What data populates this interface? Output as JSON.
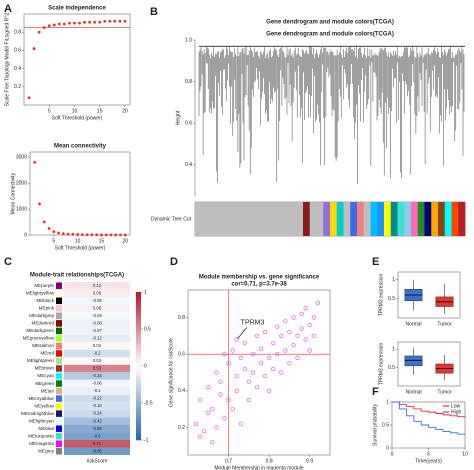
{
  "panels": [
    "A",
    "B",
    "C",
    "D",
    "E",
    "F"
  ],
  "chart_data": [
    {
      "type": "scatter",
      "title": "Scale independence",
      "xlabel": "Soft Threshold (power)",
      "ylabel": "Scale Free Topology Model Fit,signed R^2",
      "color": "#e8322f",
      "x": [
        1,
        2,
        3,
        4,
        5,
        6,
        7,
        8,
        9,
        10,
        11,
        12,
        13,
        14,
        15,
        16,
        17,
        18,
        19,
        20
      ],
      "y": [
        0.08,
        0.62,
        0.8,
        0.85,
        0.87,
        0.88,
        0.89,
        0.89,
        0.9,
        0.9,
        0.9,
        0.91,
        0.91,
        0.91,
        0.91,
        0.92,
        0.92,
        0.92,
        0.92,
        0.92
      ],
      "xlim": [
        0,
        21
      ],
      "ylim": [
        0,
        1
      ],
      "xticks": [
        5,
        10,
        15,
        20
      ],
      "yticks": [
        0.2,
        0.4,
        0.6,
        0.8
      ],
      "hline": 0.85
    },
    {
      "type": "scatter",
      "title": "Mean connectivity",
      "xlabel": "Soft Threshold (power)",
      "ylabel": "Mean Connectivity",
      "color": "#e8322f",
      "x": [
        1,
        2,
        3,
        4,
        5,
        6,
        7,
        8,
        9,
        10,
        11,
        12,
        13,
        14,
        15,
        16,
        17,
        18,
        19,
        20
      ],
      "y": [
        2800,
        1200,
        500,
        250,
        130,
        80,
        50,
        35,
        25,
        18,
        14,
        11,
        9,
        7,
        6,
        5,
        4,
        4,
        3,
        3
      ],
      "xlim": [
        0,
        21
      ],
      "ylim": [
        0,
        3200
      ],
      "xticks": [
        5,
        10,
        15,
        20
      ],
      "yticks": [
        0,
        1000,
        2000,
        3000
      ]
    },
    {
      "type": "dendrogram",
      "title": "Gene dendrogram and module colors(TCGA)",
      "ylabel": "Height",
      "bar_label": "Dynamic Tree Cut",
      "ylim": [
        0.25,
        1.0
      ],
      "yticks": [
        0.4,
        0.6,
        0.8,
        {
          "value": 1.0,
          "label": "1.0"
        }
      ],
      "module_colors": [
        "#bebebe",
        "#bebebe",
        "#bebebe",
        "#bebebe",
        "#bebebe",
        "#bebebe",
        "#bebebe",
        "#bebebe",
        "#bebebe",
        "#bebebe",
        "#bebebe",
        "#bebebe",
        "#bebebe",
        "#bebebe",
        "#bebebe",
        "#bebebe",
        "#8b1a1a",
        "#bebebe",
        "#bebebe",
        "#9370db",
        "#ffd700",
        "#00ced1",
        "#bebebe",
        "#4169e1",
        "#f08080",
        "#bebebe",
        "#00bfff",
        "#1e90ff",
        "#ffff00",
        "#008b8b",
        "#40e0d0",
        "#87ceeb",
        "#ff69b4",
        "#228b22",
        "#000080",
        "#ffa500",
        "#8b4513",
        "#00ffff",
        "#ff4500",
        "#b22222"
      ]
    },
    {
      "type": "heatmap",
      "title": "Module-trait relationships(TCGA)",
      "xlabel": "riskScore",
      "rows": [
        "MEpurple",
        "MElightyellow",
        "MEblack",
        "MEpink",
        "MEdarkgrey",
        "MEdarkred",
        "MEdarkgreen",
        "MEgreenyellow",
        "MEsalmon",
        "MEred",
        "MElightgreen",
        "MEbrown",
        "MEcyan",
        "MEgreen",
        "MEtan",
        "MEroyalblue",
        "MEyellow",
        "MEmidnightblue",
        "MElightcyan",
        "MEblue",
        "MEturquoise",
        "MEmagenta",
        "MEgrey"
      ],
      "values": [
        0.12,
        0.08,
        -0.05,
        0.06,
        -0.04,
        -0.08,
        -0.07,
        -0.12,
        0.04,
        -0.2,
        0.03,
        0.53,
        -0.34,
        -0.06,
        -0.1,
        -0.22,
        -0.18,
        -0.24,
        -0.42,
        -0.55,
        -0.6,
        0.71,
        -0.65
      ],
      "clim": [
        -1,
        1
      ],
      "colorbar_ticks": [
        -1,
        -0.5,
        0,
        0.5,
        1
      ]
    },
    {
      "type": "scatter",
      "title": "Module membership vs. gene significance",
      "subtitle": "cor=0.71, p=3.7e-38",
      "xlabel": "Module Membership in magenta module",
      "ylabel": "Gene significance for riskScore",
      "color": "#e040e0",
      "hollow": true,
      "x": [
        0.62,
        0.63,
        0.64,
        0.65,
        0.65,
        0.66,
        0.67,
        0.67,
        0.68,
        0.68,
        0.69,
        0.7,
        0.7,
        0.71,
        0.71,
        0.72,
        0.72,
        0.73,
        0.73,
        0.74,
        0.74,
        0.75,
        0.75,
        0.76,
        0.76,
        0.77,
        0.77,
        0.78,
        0.78,
        0.79,
        0.79,
        0.8,
        0.8,
        0.81,
        0.81,
        0.82,
        0.82,
        0.83,
        0.83,
        0.84,
        0.84,
        0.85,
        0.85,
        0.86,
        0.86,
        0.87,
        0.87,
        0.88,
        0.88,
        0.89,
        0.89,
        0.9,
        0.9,
        0.91,
        0.91,
        0.92,
        0.72,
        0.66,
        0.63,
        0.69
      ],
      "y": [
        0.22,
        0.35,
        0.18,
        0.42,
        0.28,
        0.3,
        0.5,
        0.2,
        0.38,
        0.45,
        0.25,
        0.55,
        0.35,
        0.62,
        0.3,
        0.48,
        0.4,
        0.58,
        0.22,
        0.52,
        0.66,
        0.45,
        0.35,
        0.6,
        0.5,
        0.7,
        0.42,
        0.55,
        0.63,
        0.48,
        0.72,
        0.58,
        0.4,
        0.66,
        0.52,
        0.75,
        0.6,
        0.5,
        0.7,
        0.78,
        0.62,
        0.55,
        0.72,
        0.8,
        0.65,
        0.7,
        0.58,
        0.82,
        0.74,
        0.68,
        0.85,
        0.76,
        0.62,
        0.8,
        0.7,
        0.88,
        0.68,
        0.12,
        0.15,
        0.6
      ],
      "xlim": [
        0.6,
        0.95
      ],
      "ylim": [
        0.05,
        0.95
      ],
      "xticks": [
        0.7,
        0.8,
        0.9
      ],
      "yticks": [
        0.2,
        0.4,
        0.6,
        0.8
      ],
      "hline": 0.6,
      "vline": 0.7,
      "annotation": {
        "text": "TPRM3",
        "x": 0.72,
        "y": 0.68
      }
    },
    {
      "type": "box",
      "ylabel": "TPRM3 expression",
      "categories": [
        "Normal",
        "Tumor"
      ],
      "colors": [
        "#3b6fd1",
        "#e63232"
      ],
      "stats": [
        {
          "min": 0.2,
          "q1": 0.45,
          "median": 0.6,
          "q3": 0.75,
          "max": 1.0
        },
        {
          "min": 0.1,
          "q1": 0.3,
          "median": 0.42,
          "q3": 0.55,
          "max": 0.9
        }
      ],
      "ylim": [
        0,
        1.2
      ],
      "yticks": [
        0.5,
        1
      ]
    },
    {
      "type": "box",
      "ylabel": "TPRM3 expression",
      "categories": [
        "Normal",
        "Tumor"
      ],
      "colors": [
        "#3b6fd1",
        "#e63232"
      ],
      "stats": [
        {
          "min": 0.3,
          "q1": 0.55,
          "median": 0.7,
          "q3": 0.82,
          "max": 1.05
        },
        {
          "min": 0.15,
          "q1": 0.35,
          "median": 0.48,
          "q3": 0.6,
          "max": 0.85
        }
      ],
      "ylim": [
        0,
        1.2
      ],
      "yticks": [
        0.5,
        1
      ]
    },
    {
      "type": "line",
      "xlabel": "Time(years)",
      "ylabel": "Survival probability",
      "step": true,
      "x": [
        0,
        1,
        2,
        3,
        4,
        5,
        6,
        7,
        8,
        9,
        10
      ],
      "series": [
        {
          "name": "Low",
          "color": "#e63232",
          "values": [
            1,
            0.95,
            0.9,
            0.85,
            0.8,
            0.78,
            0.75,
            0.72,
            0.7,
            0.68,
            0.66
          ]
        },
        {
          "name": "High",
          "color": "#3b6fd1",
          "values": [
            1,
            0.85,
            0.7,
            0.58,
            0.5,
            0.45,
            0.4,
            0.36,
            0.33,
            0.3,
            0.28
          ]
        }
      ],
      "xlim": [
        0,
        10
      ],
      "ylim": [
        0,
        1
      ],
      "xticks": [
        0,
        5,
        10
      ],
      "yticks": [
        0,
        0.5,
        1
      ]
    }
  ]
}
